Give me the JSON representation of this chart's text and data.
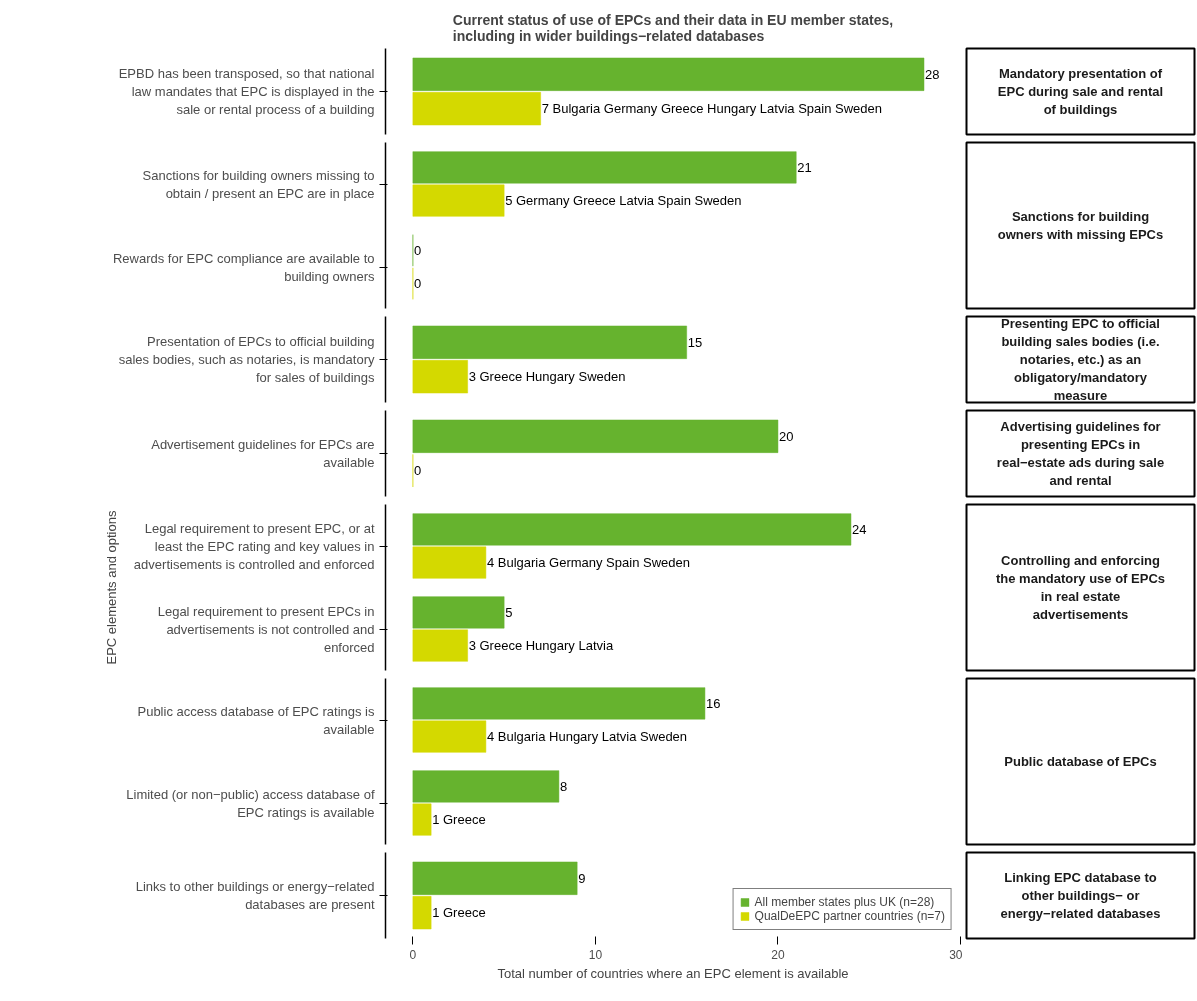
{
  "chart_data": [
    {
      "type": "bar",
      "orientation": "horizontal",
      "title": "Current status of use of EPCs and their data in EU member states, including in wider buildings−related databases",
      "y2label": "Mandatory presentation of EPC during sale and rental of buildings",
      "categories": [
        "EPBD has been transposed, so that national law mandates that EPC is displayed in the sale or rental process of a building"
      ],
      "series": [
        {
          "color": "#66b32e",
          "values": [
            28
          ],
          "value_labels": [
            "28"
          ]
        },
        {
          "color": "#d4d900",
          "values": [
            7
          ],
          "value_labels": [
            "7  Bulgaria Germany Greece Hungary Latvia Spain Sweden"
          ]
        }
      ],
      "xlim": [
        -1.5,
        30
      ],
      "xticks": [
        0,
        10,
        20,
        30
      ],
      "tick_labels": "y",
      "grid": false,
      "legend": false
    },
    {
      "type": "bar",
      "orientation": "horizontal",
      "y2label": "Sanctions for building owners with missing EPCs",
      "categories": [
        "Sanctions for building owners missing to obtain / present an EPC are in place",
        "Rewards for EPC compliance are available to building owners"
      ],
      "series": [
        {
          "color": "#66b32e",
          "values": [
            21,
            0
          ],
          "value_labels": [
            "21",
            "0"
          ]
        },
        {
          "color": "#d4d900",
          "values": [
            5,
            0
          ],
          "value_labels": [
            "5  Germany Greece Latvia Spain Sweden",
            "0"
          ]
        }
      ],
      "xlim": [
        -1.5,
        30
      ],
      "xticks": [
        0,
        10,
        20,
        30
      ],
      "tick_labels": "y",
      "grid": false,
      "legend": false
    },
    {
      "type": "bar",
      "orientation": "horizontal",
      "y2label": "Presenting EPC to official building sales bodies (i.e. notaries, etc.) as an obligatory/mandatory measure",
      "categories": [
        "Presentation of EPCs to official building sales bodies, such as notaries, is mandatory for sales of buildings"
      ],
      "series": [
        {
          "color": "#66b32e",
          "values": [
            15
          ],
          "value_labels": [
            "15"
          ]
        },
        {
          "color": "#d4d900",
          "values": [
            3
          ],
          "value_labels": [
            "3  Greece Hungary Sweden"
          ]
        }
      ],
      "xlim": [
        -1.5,
        30
      ],
      "xticks": [
        0,
        10,
        20,
        30
      ],
      "tick_labels": "y",
      "grid": false,
      "legend": false
    },
    {
      "type": "bar",
      "orientation": "horizontal",
      "y2label": "Advertising guidelines for presenting EPCs in real−estate ads during sale and rental",
      "categories": [
        "Advertisement guidelines for EPCs are available"
      ],
      "series": [
        {
          "color": "#66b32e",
          "values": [
            20
          ],
          "value_labels": [
            "20"
          ]
        },
        {
          "color": "#d4d900",
          "values": [
            0
          ],
          "value_labels": [
            "0"
          ]
        }
      ],
      "xlim": [
        -1.5,
        30
      ],
      "xticks": [
        0,
        10,
        20,
        30
      ],
      "tick_labels": "y",
      "grid": false,
      "legend": false
    },
    {
      "type": "bar",
      "orientation": "horizontal",
      "ylabel": "EPC elements and options",
      "y2label": "Controlling and enforcing the mandatory use of EPCs in real estate advertisements",
      "categories": [
        "Legal requirement to present EPC, or at least the EPC rating and key values in advertisements is controlled and enforced",
        "Legal requirement to present EPCs in advertisements is not controlled and enforced"
      ],
      "series": [
        {
          "color": "#66b32e",
          "values": [
            24,
            5
          ],
          "value_labels": [
            "24",
            "5"
          ]
        },
        {
          "color": "#d4d900",
          "values": [
            4,
            3
          ],
          "value_labels": [
            "4  Bulgaria Germany Spain Sweden",
            "3  Greece Hungary Latvia"
          ]
        }
      ],
      "xlim": [
        -1.5,
        30
      ],
      "xticks": [
        0,
        10,
        20,
        30
      ],
      "tick_labels": "y",
      "grid": false,
      "legend": false
    },
    {
      "type": "bar",
      "orientation": "horizontal",
      "y2label": "Public database of EPCs",
      "categories": [
        "Public access database of EPC ratings is available",
        "Limited (or non−public) access database of EPC ratings is available"
      ],
      "series": [
        {
          "color": "#66b32e",
          "values": [
            16,
            8
          ],
          "value_labels": [
            "16",
            "8"
          ]
        },
        {
          "color": "#d4d900",
          "values": [
            4,
            1
          ],
          "value_labels": [
            "4  Bulgaria Hungary Latvia Sweden",
            "1  Greece"
          ]
        }
      ],
      "xlim": [
        -1.5,
        30
      ],
      "xticks": [
        0,
        10,
        20,
        30
      ],
      "tick_labels": "y",
      "grid": false,
      "legend": false
    },
    {
      "type": "bar",
      "orientation": "horizontal",
      "xlabel": "Total number of countries where an EPC element is available",
      "y2label": "Linking EPC database to other buildings− or energy−related databases",
      "categories": [
        "Links to other buildings or energy−related databases are present"
      ],
      "series": [
        {
          "name": "All member states plus UK (n=28)",
          "color": "#66b32e",
          "values": [
            9
          ],
          "value_labels": [
            "9"
          ]
        },
        {
          "name": "QualDeEPC partner countries (n=7)",
          "color": "#d4d900",
          "values": [
            1
          ],
          "value_labels": [
            "1  Greece"
          ]
        }
      ],
      "xlim": [
        -1.5,
        30
      ],
      "xticks": [
        0,
        10,
        20,
        30
      ],
      "grid": false,
      "legend": "bottom right"
    }
  ]
}
